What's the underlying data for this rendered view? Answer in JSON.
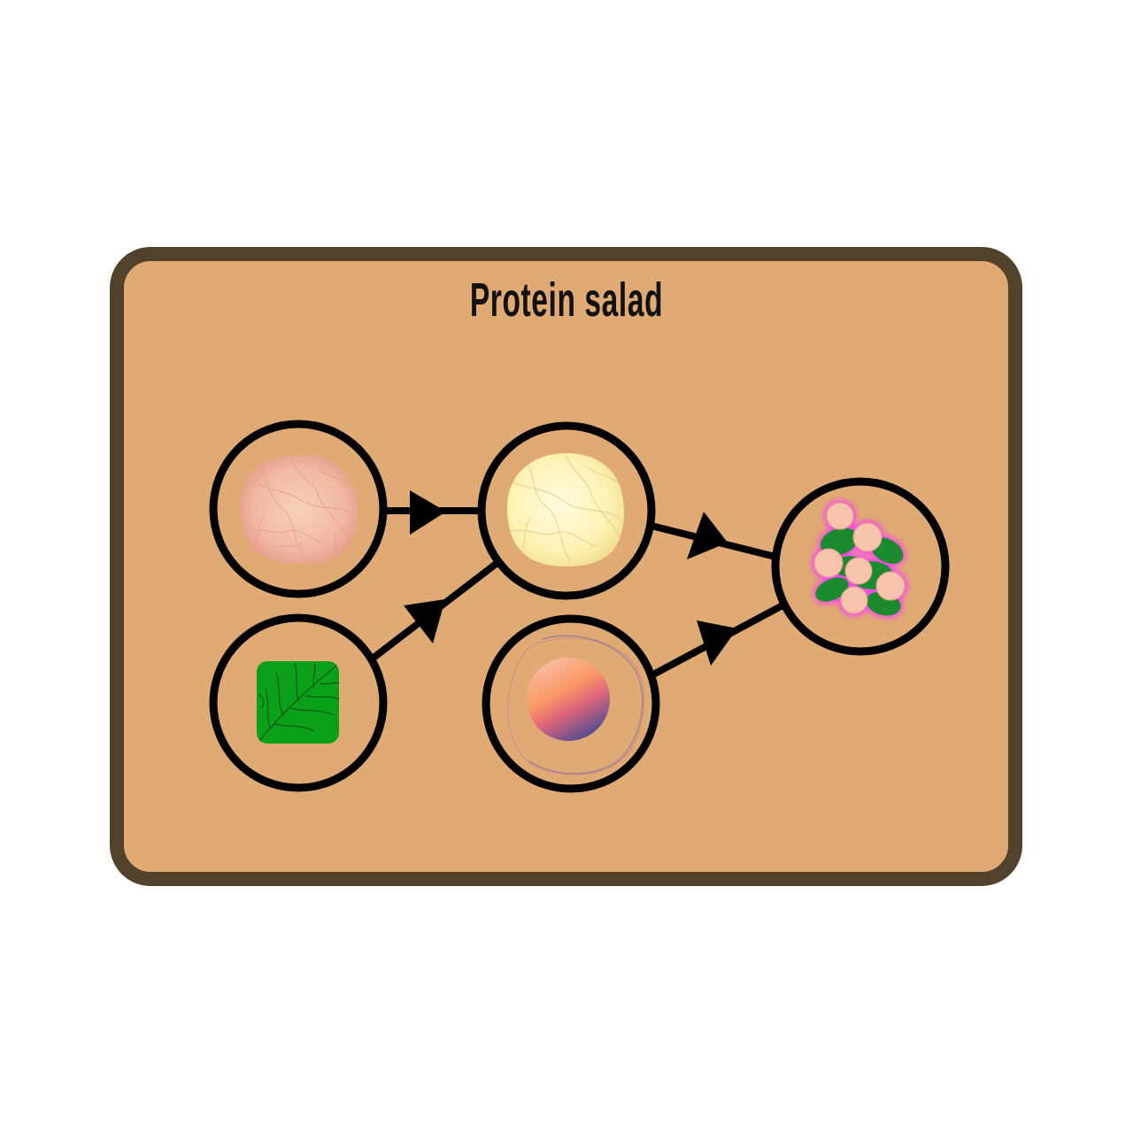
{
  "diagram": {
    "title": "Protein salad",
    "background_color": "#dfaa74",
    "border_color": "#52412b",
    "nodes": [
      {
        "id": "raw-chicken",
        "icon": "raw-chicken-icon"
      },
      {
        "id": "cooked-chicken",
        "icon": "cooked-chicken-icon"
      },
      {
        "id": "lettuce",
        "icon": "lettuce-icon"
      },
      {
        "id": "egg",
        "icon": "egg-icon"
      },
      {
        "id": "protein-salad",
        "icon": "protein-salad-icon"
      }
    ],
    "edges": [
      {
        "from": "raw-chicken",
        "to": "cooked-chicken"
      },
      {
        "from": "lettuce",
        "to": "cooked-chicken"
      },
      {
        "from": "cooked-chicken",
        "to": "protein-salad"
      },
      {
        "from": "egg",
        "to": "protein-salad"
      }
    ]
  }
}
